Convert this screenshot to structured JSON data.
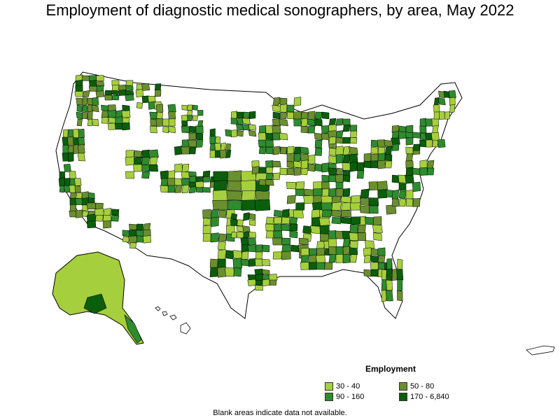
{
  "title": "Employment of diagnostic medical sonographers, by area, May 2022",
  "legend": {
    "title": "Employment",
    "items": [
      {
        "label": "30 - 40",
        "color": "#a6cf3d"
      },
      {
        "label": "50 - 80",
        "color": "#6a8f2e"
      },
      {
        "label": "90 - 160",
        "color": "#2e8b2e"
      },
      {
        "label": "170 - 6,840",
        "color": "#0b5e0b"
      }
    ]
  },
  "note": "Blank areas indicate data not available.",
  "colors": {
    "no_data": "#ffffff",
    "border": "#000000"
  }
}
